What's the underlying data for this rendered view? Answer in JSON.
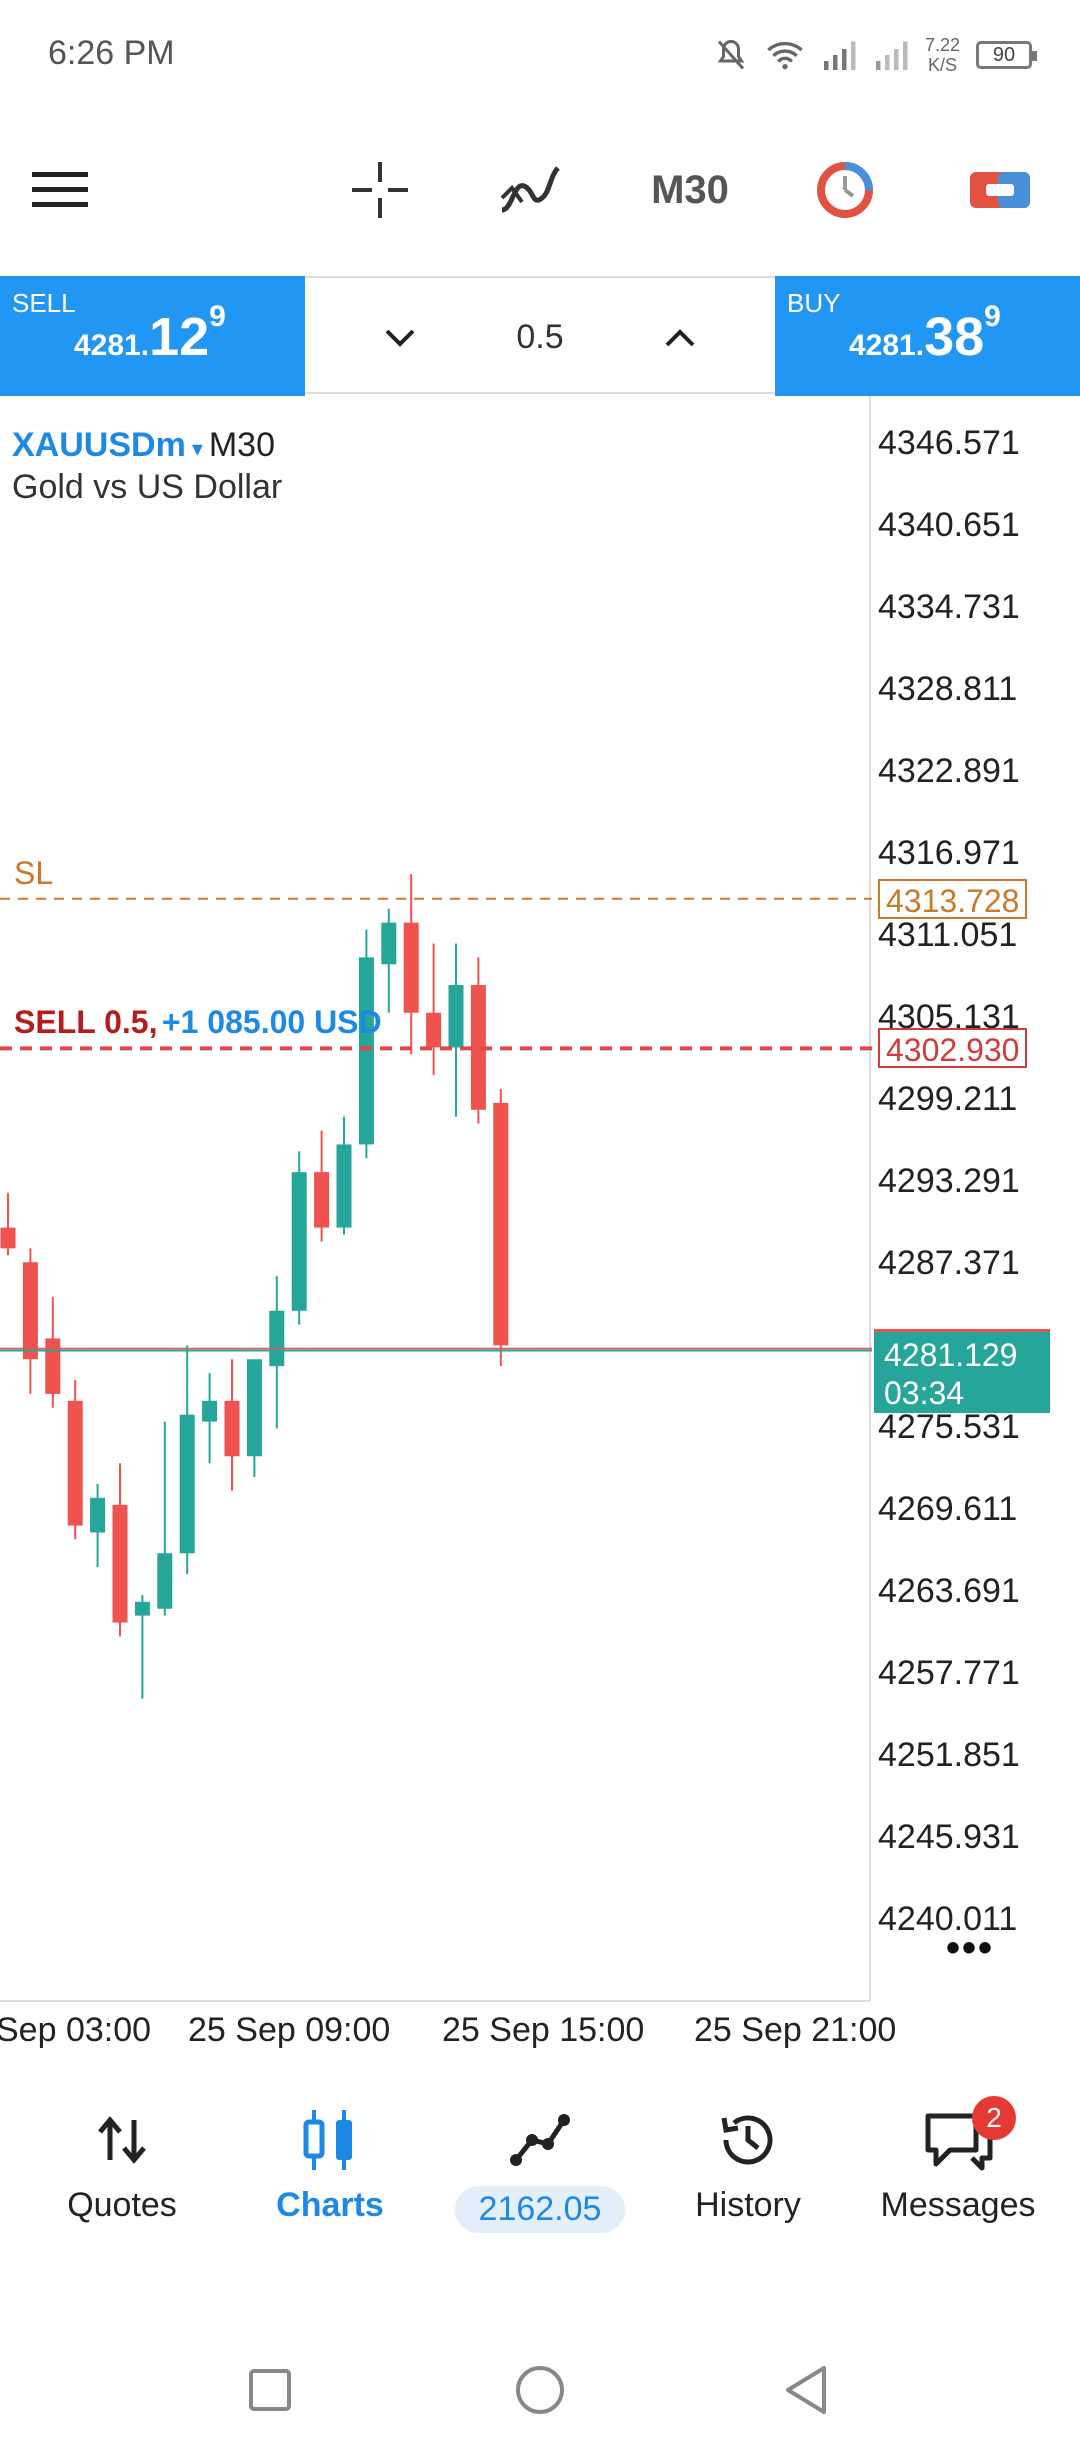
{
  "status_bar": {
    "time": "6:26 PM",
    "speed_top": "7.22",
    "speed_bottom": "K/S",
    "battery": "90"
  },
  "toolbar": {
    "timeframe": "M30"
  },
  "trade": {
    "sell_label": "SELL",
    "sell_price_main": "4281.",
    "sell_price_big": "12",
    "sell_price_sup": "9",
    "lot_value": "0.5",
    "buy_label": "BUY",
    "buy_price_main": "4281.",
    "buy_price_big": "38",
    "buy_price_sup": "9"
  },
  "chart": {
    "symbol": "XAUUSDm",
    "caret": "▾",
    "timeframe": "M30",
    "description": "Gold vs US Dollar",
    "y_ticks": [
      "4346.571",
      "4340.651",
      "4334.731",
      "4328.811",
      "4322.891",
      "4316.971",
      "4311.051",
      "4305.131",
      "4299.211",
      "4293.291",
      "4287.371",
      "4281.129",
      "4275.531",
      "4269.611",
      "4263.691",
      "4257.771",
      "4251.851",
      "4245.931",
      "4240.011"
    ],
    "x_ticks": [
      "Sep 03:00",
      "25 Sep 09:00",
      "25 Sep 15:00",
      "25 Sep 21:00"
    ],
    "sl_label": "SL",
    "sl_price": "4313.728",
    "order_label": "SELL 0.5,",
    "order_profit": "+1 085.00 USD",
    "order_price": "4302.930",
    "current_price": "4281.129",
    "countdown": "03:34",
    "more": "•••"
  },
  "chart_data": {
    "type": "candlestick",
    "symbol": "XAUUSDm",
    "timeframe": "M30",
    "ylim": [
      4236,
      4350
    ],
    "candles": [
      {
        "o": 4290.0,
        "h": 4292.5,
        "l": 4288.0,
        "c": 4288.5
      },
      {
        "o": 4287.5,
        "h": 4288.5,
        "l": 4278.0,
        "c": 4280.5
      },
      {
        "o": 4282.0,
        "h": 4285.0,
        "l": 4277.0,
        "c": 4278.0
      },
      {
        "o": 4277.5,
        "h": 4279.0,
        "l": 4267.5,
        "c": 4268.5
      },
      {
        "o": 4268.0,
        "h": 4271.5,
        "l": 4265.5,
        "c": 4270.5
      },
      {
        "o": 4270.0,
        "h": 4273.0,
        "l": 4260.5,
        "c": 4261.5
      },
      {
        "o": 4262.0,
        "h": 4263.5,
        "l": 4256.0,
        "c": 4263.0
      },
      {
        "o": 4262.5,
        "h": 4276.0,
        "l": 4262.0,
        "c": 4266.5
      },
      {
        "o": 4266.5,
        "h": 4281.5,
        "l": 4265.0,
        "c": 4276.5
      },
      {
        "o": 4276.0,
        "h": 4279.5,
        "l": 4273.0,
        "c": 4277.5
      },
      {
        "o": 4277.5,
        "h": 4280.5,
        "l": 4271.0,
        "c": 4273.5
      },
      {
        "o": 4273.5,
        "h": 4280.0,
        "l": 4272.0,
        "c": 4280.5
      },
      {
        "o": 4280.0,
        "h": 4286.5,
        "l": 4275.5,
        "c": 4284.0
      },
      {
        "o": 4284.0,
        "h": 4295.5,
        "l": 4283.0,
        "c": 4294.0
      },
      {
        "o": 4294.0,
        "h": 4297.0,
        "l": 4289.0,
        "c": 4290.0
      },
      {
        "o": 4290.0,
        "h": 4298.0,
        "l": 4289.5,
        "c": 4296.0
      },
      {
        "o": 4296.0,
        "h": 4311.5,
        "l": 4295.0,
        "c": 4309.5
      },
      {
        "o": 4309.0,
        "h": 4313.0,
        "l": 4305.5,
        "c": 4312.0
      },
      {
        "o": 4312.0,
        "h": 4315.5,
        "l": 4302.5,
        "c": 4305.5
      },
      {
        "o": 4305.5,
        "h": 4310.5,
        "l": 4301.0,
        "c": 4303.0
      },
      {
        "o": 4303.0,
        "h": 4310.5,
        "l": 4298.0,
        "c": 4307.5
      },
      {
        "o": 4307.5,
        "h": 4309.5,
        "l": 4297.5,
        "c": 4298.5
      },
      {
        "o": 4299.0,
        "h": 4300.0,
        "l": 4280.0,
        "c": 4281.5
      }
    ],
    "sl": 4313.728,
    "order": 4302.93,
    "current": 4281.129
  },
  "nav": {
    "quotes": "Quotes",
    "charts": "Charts",
    "trade": "2162.05",
    "history": "History",
    "messages": "Messages",
    "messages_badge": "2"
  }
}
